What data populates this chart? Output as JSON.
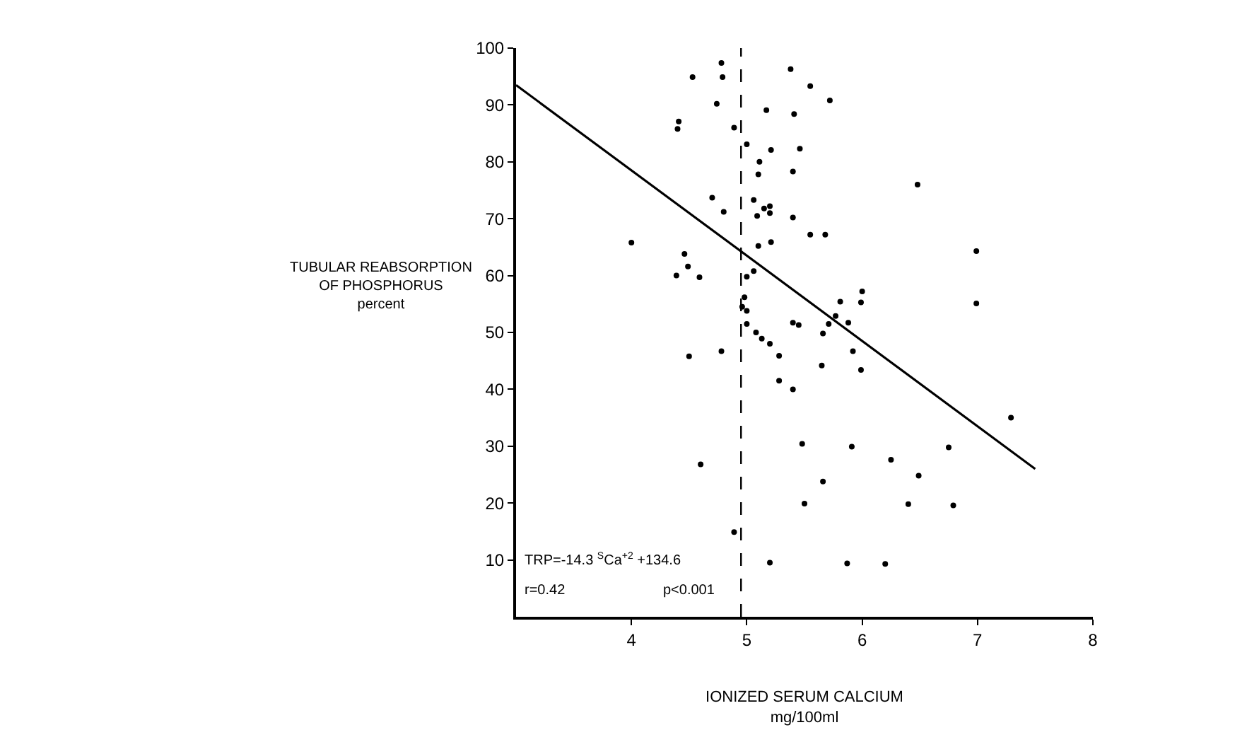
{
  "chart_data": {
    "type": "scatter",
    "xlabel": "IONIZED SERUM CALCIUM\nmg/100ml",
    "ylabel": "TUBULAR REABSORPTION\nOF PHOSPHORUS\npercent",
    "xlim": [
      3,
      8
    ],
    "xticks": [
      4,
      5,
      6,
      7,
      8
    ],
    "ylim": [
      0,
      100
    ],
    "yticks": [
      10,
      20,
      30,
      40,
      50,
      60,
      70,
      80,
      90,
      100
    ],
    "series": [
      {
        "marker": "circle",
        "color": "#000000",
        "x": [
          4.0,
          4.53,
          4.78,
          4.79,
          4.74,
          4.41,
          4.4,
          4.89,
          5.0,
          4.7,
          4.8,
          4.46,
          4.49,
          4.39,
          4.59,
          5.17,
          5.11,
          5.1,
          5.21,
          5.06,
          5.09,
          5.15,
          5.2,
          5.2,
          5.1,
          5.21,
          5.06,
          5.0,
          4.98,
          4.96,
          5.0,
          5.38,
          5.55,
          5.41,
          5.46,
          5.4,
          5.4,
          5.55,
          5.68,
          5.72,
          6.48,
          6.99,
          6.0,
          5.81,
          5.99,
          6.99,
          5.77,
          5.71,
          5.88,
          5.4,
          5.45,
          4.5,
          4.78,
          4.6,
          4.89,
          5.2,
          5.0,
          5.08,
          5.13,
          5.2,
          5.28,
          5.28,
          5.4,
          5.66,
          5.65,
          5.48,
          5.5,
          5.66,
          5.92,
          5.99,
          7.29,
          5.91,
          6.25,
          6.75,
          6.49,
          6.4,
          6.79,
          5.87,
          6.2
        ],
        "values": [
          65.8,
          94.9,
          97.4,
          94.9,
          90.2,
          87.1,
          85.8,
          86.0,
          83.1,
          73.7,
          71.2,
          63.8,
          61.6,
          60.0,
          59.7,
          89.1,
          80.0,
          77.8,
          82.1,
          73.3,
          70.5,
          71.8,
          72.2,
          71.0,
          65.2,
          65.9,
          60.8,
          59.8,
          56.2,
          54.5,
          53.8,
          96.3,
          93.3,
          88.4,
          82.3,
          78.3,
          70.2,
          67.2,
          67.2,
          90.8,
          76.0,
          64.3,
          57.2,
          55.4,
          55.3,
          55.1,
          52.9,
          51.5,
          51.7,
          51.7,
          51.3,
          45.8,
          46.7,
          26.8,
          14.9,
          9.5,
          51.5,
          50.0,
          48.9,
          48.0,
          45.9,
          41.5,
          40.0,
          49.8,
          44.2,
          30.4,
          19.9,
          23.8,
          46.7,
          43.4,
          35.0,
          29.9,
          27.6,
          29.8,
          24.8,
          19.8,
          19.6,
          9.4,
          9.3
        ]
      },
      {
        "type": "line",
        "color": "#000000",
        "x": [
          3,
          7.5
        ],
        "values": [
          93.5,
          26.0
        ],
        "line_style": "solid",
        "marker": "none"
      }
    ],
    "ref_lines": [
      {
        "axis": "x",
        "value": 4.95,
        "color": "#000000",
        "line_style": "dashed"
      }
    ],
    "annotations": [
      "TRP=-14.3 $^{S}$Ca$^{+2}$ +134.6",
      "r=0.42",
      "p<0.001"
    ]
  }
}
